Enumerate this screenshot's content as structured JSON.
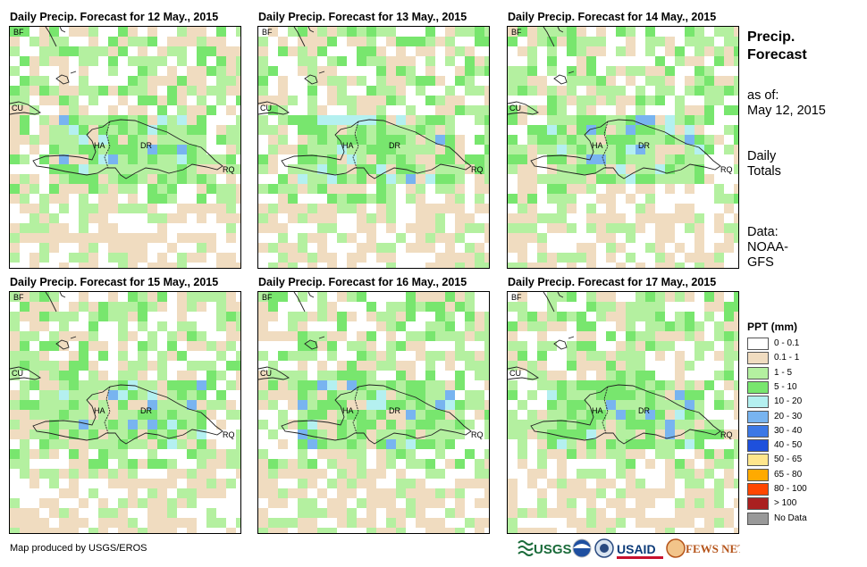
{
  "panels": [
    {
      "title": "Daily Precip. Forecast for 12 May., 2015"
    },
    {
      "title": "Daily Precip. Forecast for 13 May., 2015"
    },
    {
      "title": "Daily Precip. Forecast for 14 May., 2015"
    },
    {
      "title": "Daily Precip. Forecast for 15 May., 2015"
    },
    {
      "title": "Daily Precip. Forecast for 16 May., 2015"
    },
    {
      "title": "Daily Precip. Forecast for 17 May., 2015"
    }
  ],
  "map_labels": {
    "bf": "BF",
    "cu": "CU",
    "ha": "HA",
    "dr": "DR",
    "rq": "RQ"
  },
  "sidebar": {
    "title_line1": "Precip.",
    "title_line2": "Forecast",
    "asof_line1": "as of:",
    "asof_line2": "May 12, 2015",
    "totals_line1": "Daily",
    "totals_line2": "Totals",
    "data_line1": "Data:",
    "data_line2": "NOAA-",
    "data_line3": "GFS"
  },
  "legend": {
    "title": "PPT (mm)",
    "items": [
      {
        "label": "0 - 0.1",
        "color": "#ffffff"
      },
      {
        "label": "0.1 - 1",
        "color": "#f0dcc0"
      },
      {
        "label": "1 - 5",
        "color": "#b4f0a0"
      },
      {
        "label": "5 - 10",
        "color": "#78e66e"
      },
      {
        "label": "10 - 20",
        "color": "#b4f0f0"
      },
      {
        "label": "20 - 30",
        "color": "#78b4f0"
      },
      {
        "label": "30 - 40",
        "color": "#3c78e6"
      },
      {
        "label": "40 - 50",
        "color": "#1e50dc"
      },
      {
        "label": "50 - 65",
        "color": "#ffe68c"
      },
      {
        "label": "65 - 80",
        "color": "#ffaa00"
      },
      {
        "label": "80 - 100",
        "color": "#ff4600"
      },
      {
        "label": "> 100",
        "color": "#aa2020"
      },
      {
        "label": "No Data",
        "color": "#999999"
      }
    ]
  },
  "footer": {
    "credit": "Map produced by USGS/EROS"
  },
  "logos": {
    "usgs": "USGS",
    "usaid": "USAID",
    "fewsnet": "FEWS NET"
  }
}
